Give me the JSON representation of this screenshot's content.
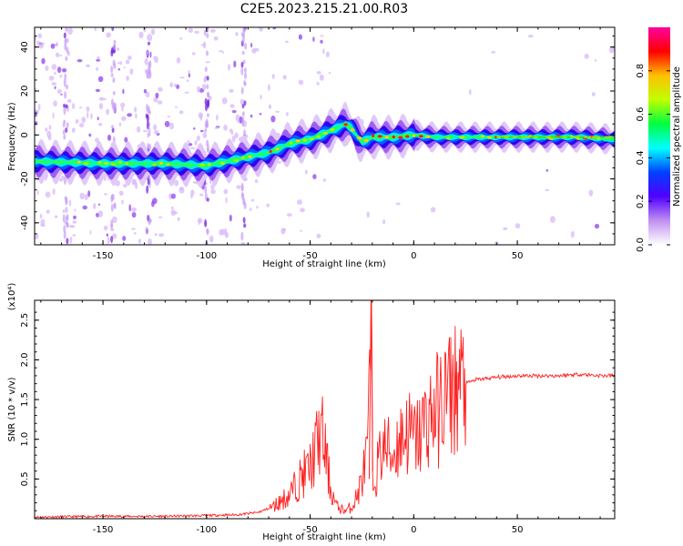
{
  "figure": {
    "title": "C2E5.2023.215.21.00.R03"
  },
  "chart_data": [
    {
      "type": "heatmap",
      "xlabel": "Height of straight line (km)",
      "ylabel": "Frequency (Hz)",
      "xlim": [
        -183,
        97
      ],
      "ylim": [
        -50,
        49
      ],
      "xticks": [
        -150,
        -100,
        -50,
        0,
        50
      ],
      "yticks": [
        -40,
        -20,
        0,
        20,
        40
      ],
      "colorbar": {
        "label": "Normalized spectral amplitude",
        "range": [
          0,
          1
        ],
        "ticks": [
          "0.0",
          "0.2",
          "0.4",
          "0.6",
          "0.8"
        ],
        "colors": [
          "#ffffff",
          "#c090f0",
          "#5000ff",
          "#0040ff",
          "#00ffff",
          "#00ff40",
          "#c0ff00",
          "#ffc000",
          "#ff0000",
          "#ff00a0"
        ]
      },
      "ridge": {
        "x": [
          -183,
          -150,
          -120,
          -100,
          -90,
          -80,
          -70,
          -60,
          -50,
          -40,
          -33,
          -30,
          -27,
          -25,
          -20,
          -10,
          0,
          10,
          20,
          40,
          60,
          80,
          97
        ],
        "y": [
          -12,
          -13,
          -13,
          -14,
          -12,
          -10,
          -8,
          -4,
          -2,
          2,
          5,
          3,
          -1,
          -3,
          -1,
          -1,
          0,
          -1,
          -1,
          -1,
          -1,
          -1,
          -2
        ]
      }
    },
    {
      "type": "line",
      "xlabel": "Height of straight line (km)",
      "ylabel": "SNR (10 * v/v)",
      "ylabel_scale": "(x10⁴)",
      "xlim": [
        -183,
        97
      ],
      "ylim": [
        0,
        2.75
      ],
      "xticks": [
        -150,
        -100,
        -50,
        0,
        50
      ],
      "yticks": [
        "0.5",
        "1.0",
        "1.5",
        "2.0",
        "2.5"
      ],
      "series": [
        {
          "color": "#ff2020",
          "x": [
            -183,
            -150,
            -120,
            -100,
            -85,
            -75,
            -68,
            -60,
            -55,
            -50,
            -47,
            -45,
            -43,
            -40,
            -37,
            -33,
            -30,
            -27,
            -24,
            -22,
            -20.5,
            -20,
            -18,
            -15,
            -12,
            -10,
            -7,
            -3,
            0,
            3,
            5,
            8,
            10,
            13,
            15,
            18,
            20,
            25,
            30,
            40,
            50,
            60,
            70,
            80,
            90,
            97
          ],
          "y": [
            0.02,
            0.03,
            0.03,
            0.04,
            0.05,
            0.08,
            0.15,
            0.3,
            0.5,
            0.65,
            0.9,
            1.1,
            0.9,
            0.35,
            0.15,
            0.1,
            0.15,
            0.3,
            0.6,
            0.9,
            2.75,
            0.4,
            0.6,
            0.9,
            0.85,
            0.8,
            1.0,
            1.1,
            1.0,
            1.05,
            1.2,
            1.3,
            1.35,
            1.4,
            1.55,
            1.6,
            1.65,
            1.7,
            1.75,
            1.78,
            1.8,
            1.8,
            1.8,
            1.82,
            1.8,
            1.8
          ]
        }
      ]
    }
  ]
}
